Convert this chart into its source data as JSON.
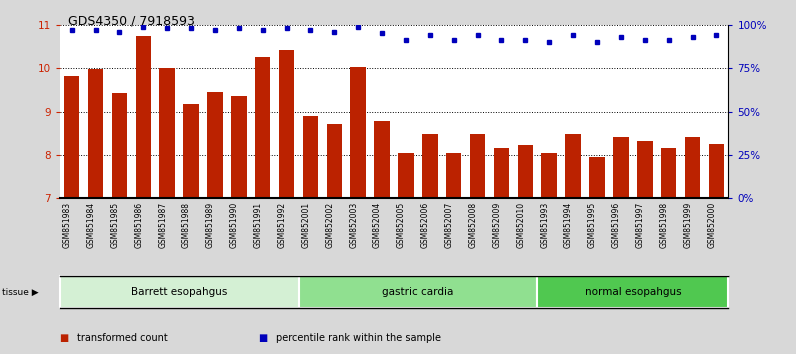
{
  "title": "GDS4350 / 7918593",
  "samples": [
    "GSM851983",
    "GSM851984",
    "GSM851985",
    "GSM851986",
    "GSM851987",
    "GSM851988",
    "GSM851989",
    "GSM851990",
    "GSM851991",
    "GSM851992",
    "GSM852001",
    "GSM852002",
    "GSM852003",
    "GSM852004",
    "GSM852005",
    "GSM852006",
    "GSM852007",
    "GSM852008",
    "GSM852009",
    "GSM852010",
    "GSM851993",
    "GSM851994",
    "GSM851995",
    "GSM851996",
    "GSM851997",
    "GSM851998",
    "GSM851999",
    "GSM852000"
  ],
  "bar_values": [
    9.82,
    9.98,
    9.42,
    10.75,
    10.0,
    9.18,
    9.45,
    9.35,
    10.25,
    10.42,
    8.9,
    8.72,
    10.02,
    8.78,
    8.05,
    8.48,
    8.05,
    8.48,
    8.15,
    8.22,
    8.05,
    8.48,
    7.95,
    8.42,
    8.32,
    8.15,
    8.42,
    8.25
  ],
  "percentile_values": [
    97,
    97,
    96,
    99,
    98,
    98,
    97,
    98,
    97,
    98,
    97,
    96,
    99,
    95,
    91,
    94,
    91,
    94,
    91,
    91,
    90,
    94,
    90,
    93,
    91,
    91,
    93,
    94
  ],
  "groups": [
    {
      "label": "Barrett esopahgus",
      "start": 0,
      "end": 10,
      "color": "#d4f0d4"
    },
    {
      "label": "gastric cardia",
      "start": 10,
      "end": 20,
      "color": "#90e090"
    },
    {
      "label": "normal esopahgus",
      "start": 20,
      "end": 28,
      "color": "#50c850"
    }
  ],
  "bar_color": "#bb2200",
  "dot_color": "#0000bb",
  "ylim_left": [
    7,
    11
  ],
  "ylim_right": [
    0,
    100
  ],
  "yticks_left": [
    7,
    8,
    9,
    10,
    11
  ],
  "yticks_right": [
    0,
    25,
    50,
    75,
    100
  ],
  "ytick_labels_right": [
    "0%",
    "25%",
    "50%",
    "75%",
    "100%"
  ],
  "background_color": "#d8d8d8",
  "plot_bg_color": "#ffffff",
  "title_fontsize": 9,
  "axis_label_color_left": "#cc2200",
  "axis_label_color_right": "#0000cc",
  "legend_items": [
    {
      "color": "#bb2200",
      "label": "transformed count"
    },
    {
      "color": "#0000bb",
      "label": "percentile rank within the sample"
    }
  ],
  "xlabels_bg": "#cccccc",
  "groups_border_color": "#888888"
}
